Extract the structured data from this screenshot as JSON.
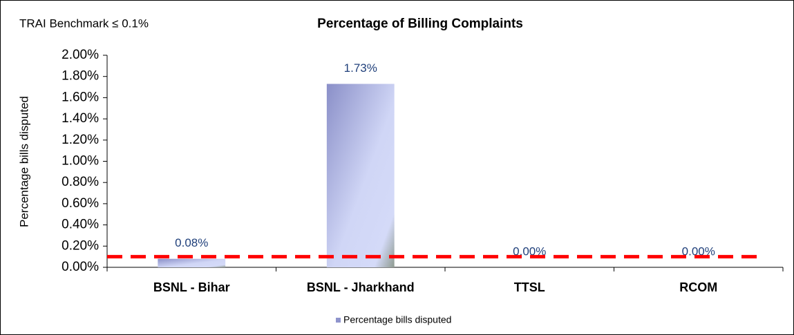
{
  "chart_data": {
    "type": "bar",
    "title": "Percentage of Billing Complaints",
    "ylabel": "Percentage bills disputed",
    "categories": [
      "BSNL - Bihar",
      "BSNL - Jharkhand",
      "TTSL",
      "RCOM"
    ],
    "series": [
      {
        "name": "Percentage bills disputed",
        "color": "#8f94cc",
        "values": [
          0.08,
          1.73,
          0,
          0
        ],
        "value_labels": [
          "0.08%",
          "1.73%",
          "0.00%",
          "0.00%"
        ]
      }
    ],
    "ylim": [
      0,
      2
    ],
    "yticks": [
      {
        "value": 0,
        "label": "0.00%"
      },
      {
        "value": 0.2,
        "label": "0.20%"
      },
      {
        "value": 0.4,
        "label": "0.40%"
      },
      {
        "value": 0.6,
        "label": "0.60%"
      },
      {
        "value": 0.8,
        "label": "0.80%"
      },
      {
        "value": 1.0,
        "label": "1.00%"
      },
      {
        "value": 1.2,
        "label": "1.20%"
      },
      {
        "value": 1.4,
        "label": "1.40%"
      },
      {
        "value": 1.6,
        "label": "1.60%"
      },
      {
        "value": 1.8,
        "label": "1.80%"
      },
      {
        "value": 2.0,
        "label": "2.00%"
      }
    ],
    "grid": false,
    "benchmark": {
      "label": "TRAI Benchmark ≤ 0.1%",
      "value": 0.1,
      "color": "#ff0000"
    },
    "legend": "bottom"
  }
}
